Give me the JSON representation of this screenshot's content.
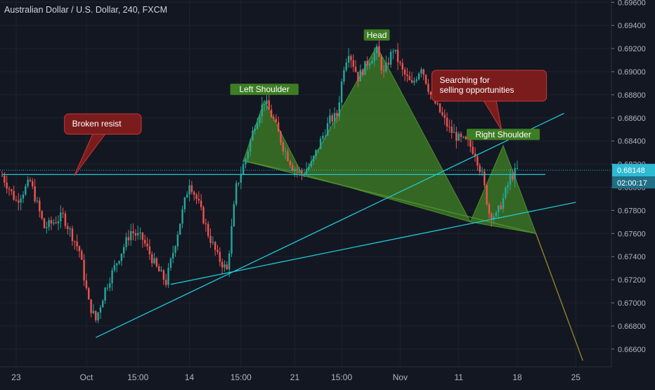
{
  "header": {
    "title": "Australian Dollar / U.S. Dollar, 240, FXCM"
  },
  "colors": {
    "background": "#131722",
    "bull": "#26a69a",
    "bear": "#ef5350",
    "pattern_fill": "#3e7d24",
    "trendline": "#1ec8d2",
    "label_green": "#3e7d24",
    "label_red": "#7a1c1c",
    "price_tag": "#2fbad3",
    "countdown_tag": "#1f6f86"
  },
  "chart_data": {
    "type": "candlestick",
    "symbol": "AUDUSD",
    "timeframe": "240",
    "ylim": [
      0.6652,
      0.6972
    ],
    "y_ticks": [
      "0.69600",
      "0.69400",
      "0.69200",
      "0.69000",
      "0.68800",
      "0.68600",
      "0.68400",
      "0.68200",
      "0.68000",
      "0.67800",
      "0.67600",
      "0.67400",
      "0.67200",
      "0.67000",
      "0.66800",
      "0.66600"
    ],
    "y_tick_values": [
      0.696,
      0.694,
      0.692,
      0.69,
      0.688,
      0.686,
      0.684,
      0.682,
      0.68,
      0.678,
      0.676,
      0.674,
      0.672,
      0.67,
      0.668,
      0.666
    ],
    "x_ticks": [
      "23",
      "Oct",
      "15:00",
      "14",
      "15:00",
      "21",
      "15:00",
      "Nov",
      "11",
      "18",
      "25"
    ],
    "bar_range": [
      0,
      238
    ],
    "x_tick_bars": [
      6,
      36,
      58,
      80,
      102,
      125,
      145,
      170,
      195,
      220,
      245
    ],
    "keypoints": [
      {
        "bar": 0,
        "price": 0.681
      },
      {
        "bar": 6,
        "price": 0.6788
      },
      {
        "bar": 12,
        "price": 0.6805
      },
      {
        "bar": 18,
        "price": 0.6765
      },
      {
        "bar": 26,
        "price": 0.6775
      },
      {
        "bar": 33,
        "price": 0.6745
      },
      {
        "bar": 37,
        "price": 0.67
      },
      {
        "bar": 40,
        "price": 0.6685
      },
      {
        "bar": 44,
        "price": 0.6712
      },
      {
        "bar": 50,
        "price": 0.674
      },
      {
        "bar": 55,
        "price": 0.6762
      },
      {
        "bar": 60,
        "price": 0.6755
      },
      {
        "bar": 66,
        "price": 0.673
      },
      {
        "bar": 70,
        "price": 0.6718
      },
      {
        "bar": 76,
        "price": 0.677
      },
      {
        "bar": 80,
        "price": 0.6805
      },
      {
        "bar": 84,
        "price": 0.6785
      },
      {
        "bar": 88,
        "price": 0.676
      },
      {
        "bar": 92,
        "price": 0.674
      },
      {
        "bar": 96,
        "price": 0.6728
      },
      {
        "bar": 100,
        "price": 0.68
      },
      {
        "bar": 104,
        "price": 0.6825
      },
      {
        "bar": 108,
        "price": 0.6855
      },
      {
        "bar": 112,
        "price": 0.6875
      },
      {
        "bar": 116,
        "price": 0.6858
      },
      {
        "bar": 120,
        "price": 0.6835
      },
      {
        "bar": 124,
        "price": 0.6818
      },
      {
        "bar": 128,
        "price": 0.6812
      },
      {
        "bar": 132,
        "price": 0.682
      },
      {
        "bar": 136,
        "price": 0.684
      },
      {
        "bar": 140,
        "price": 0.6858
      },
      {
        "bar": 143,
        "price": 0.6862
      },
      {
        "bar": 146,
        "price": 0.6905
      },
      {
        "bar": 148,
        "price": 0.6918
      },
      {
        "bar": 152,
        "price": 0.6895
      },
      {
        "bar": 156,
        "price": 0.6908
      },
      {
        "bar": 160,
        "price": 0.6918
      },
      {
        "bar": 163,
        "price": 0.6898
      },
      {
        "bar": 167,
        "price": 0.692
      },
      {
        "bar": 171,
        "price": 0.69
      },
      {
        "bar": 175,
        "price": 0.6888
      },
      {
        "bar": 179,
        "price": 0.6905
      },
      {
        "bar": 183,
        "price": 0.688
      },
      {
        "bar": 187,
        "price": 0.6865
      },
      {
        "bar": 191,
        "price": 0.685
      },
      {
        "bar": 195,
        "price": 0.6842
      },
      {
        "bar": 199,
        "price": 0.6838
      },
      {
        "bar": 202,
        "price": 0.683
      },
      {
        "bar": 205,
        "price": 0.681
      },
      {
        "bar": 208,
        "price": 0.6778
      },
      {
        "bar": 211,
        "price": 0.6775
      },
      {
        "bar": 214,
        "price": 0.679
      },
      {
        "bar": 217,
        "price": 0.6808
      },
      {
        "bar": 220,
        "price": 0.6815
      }
    ],
    "current_price": "0.68148",
    "current_price_value": 0.68148,
    "countdown": "02:00:17",
    "resistance_level": 0.681,
    "pattern": {
      "shoulder_poly": [
        [
          0.392,
          0.0
        ],
        [
          0.427,
          -0.0003
        ],
        [
          0.49,
          0.0
        ]
      ],
      "left_shoulder": [
        [
          103,
          0.6823
        ],
        [
          112,
          0.6875
        ],
        [
          128,
          0.6812
        ]
      ],
      "head": [
        [
          129,
          0.6811
        ],
        [
          160,
          0.6922
        ],
        [
          200,
          0.677
        ]
      ],
      "right_shoulder": [
        [
          200,
          0.677
        ],
        [
          214,
          0.6836
        ],
        [
          228,
          0.676
        ]
      ],
      "projection": [
        [
          228,
          0.676
        ],
        [
          248,
          0.665
        ]
      ]
    },
    "trendlines": [
      {
        "from": [
          40,
          0.667
        ],
        "to": [
          240,
          0.6864
        ]
      },
      {
        "from": [
          72,
          0.6716
        ],
        "to": [
          245,
          0.6787
        ]
      },
      {
        "from": [
          0,
          0.6811
        ],
        "to": [
          232,
          0.6811
        ]
      }
    ],
    "annotations": [
      {
        "text": "Left Shoulder",
        "bar": 112,
        "price": 0.6875,
        "style": "green"
      },
      {
        "text": "Head",
        "bar": 160,
        "price": 0.6922,
        "style": "green"
      },
      {
        "text": "Right Shoulder",
        "bar": 214,
        "price": 0.6836,
        "style": "green"
      },
      {
        "text": "Broken resist",
        "bar": 35,
        "price": 0.681,
        "style": "red"
      },
      {
        "lines": [
          "Searching for",
          "selling opportunities"
        ],
        "bar": 205,
        "price": 0.6855,
        "style": "red"
      }
    ]
  }
}
